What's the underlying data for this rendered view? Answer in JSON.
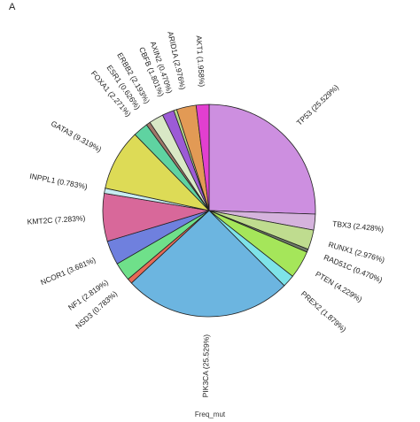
{
  "panel_letter": "A",
  "chart_data": {
    "type": "pie",
    "title": "",
    "xlabel": "Freq_mut",
    "ylabel": "",
    "unit": "%",
    "slices": [
      {
        "label": "TP53 (25.529%)",
        "value": 25.529,
        "color": "#cd8fe0"
      },
      {
        "label": "TBX3 (2.428%)",
        "value": 2.428,
        "color": "#d5b3dd"
      },
      {
        "label": "RUNX1 (2.976%)",
        "value": 2.976,
        "color": "#bfdc8f"
      },
      {
        "label": "RAD51C (0.470%)",
        "value": 0.47,
        "color": "#6f7a6a"
      },
      {
        "label": "PTEN (4.229%)",
        "value": 4.229,
        "color": "#a5e65a"
      },
      {
        "label": "PREX2 (1.879%)",
        "value": 1.879,
        "color": "#7ee3e8"
      },
      {
        "label": "PIK3CA (25.529%)",
        "value": 25.529,
        "color": "#6cb5e0"
      },
      {
        "label": "NSD3 (0.783%)",
        "value": 0.783,
        "color": "#e76a56"
      },
      {
        "label": "NF1 (2.819%)",
        "value": 2.819,
        "color": "#6fe08a"
      },
      {
        "label": "NCOR1 (3.681%)",
        "value": 3.681,
        "color": "#6f80de"
      },
      {
        "label": "KMT2C (7.283%)",
        "value": 7.283,
        "color": "#d8689a"
      },
      {
        "label": "INPPL1 (0.783%)",
        "value": 0.783,
        "color": "#c7ecf2"
      },
      {
        "label": "GATA3 (9.319%)",
        "value": 9.319,
        "color": "#dddb56"
      },
      {
        "label": "FOXA1 (2.271%)",
        "value": 2.271,
        "color": "#5fd3a1"
      },
      {
        "label": "ESR1 (0.626%)",
        "value": 0.626,
        "color": "#a0786a"
      },
      {
        "label": "ERBB2 (2.193%)",
        "value": 2.193,
        "color": "#d9e8c6"
      },
      {
        "label": "CBFB (1.801%)",
        "value": 1.801,
        "color": "#9c5bd6"
      },
      {
        "label": "AXIN2 (0.470%)",
        "value": 0.47,
        "color": "#b7d98c"
      },
      {
        "label": "ARID1A (2.976%)",
        "value": 2.976,
        "color": "#e29a55"
      },
      {
        "label": "AKT1 (1.958%)",
        "value": 1.958,
        "color": "#e23fd0"
      }
    ]
  }
}
